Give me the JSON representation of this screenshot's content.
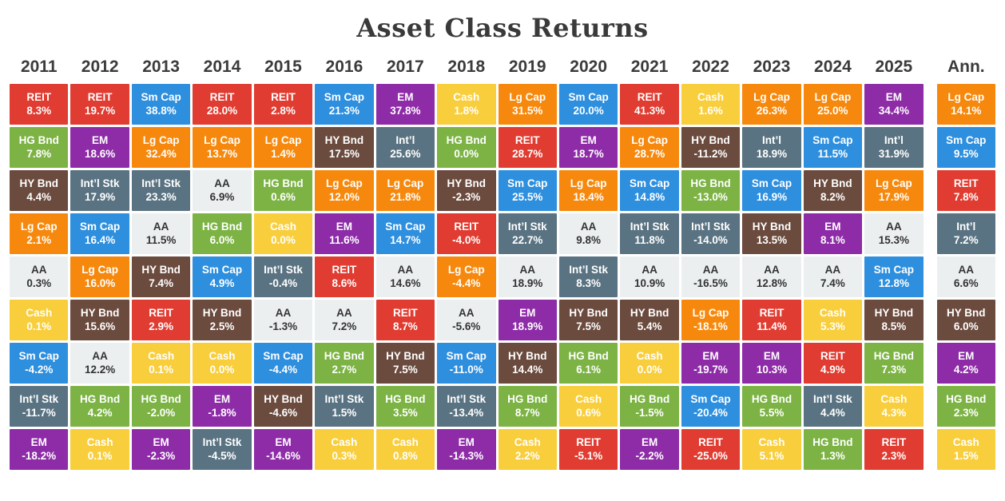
{
  "chart_data": {
    "type": "table",
    "title": "Asset Class Returns",
    "columns_header": [
      "2011",
      "2012",
      "2013",
      "2014",
      "2015",
      "2016",
      "2017",
      "2018",
      "2019",
      "2020",
      "2021",
      "2022",
      "2023",
      "2024",
      "2025",
      "Ann."
    ],
    "legend": {
      "Lg Cap": "#F6890D",
      "Sm Cap": "#2E8FDE",
      "Int’l Stk": "#5A7382",
      "Int’l": "#5A7382",
      "EM": "#8E2CA8",
      "REIT": "#E03C31",
      "HG Bnd": "#7CB344",
      "HY Bnd": "#6B4B3E",
      "AA": "#ECEFF0",
      "Cash": "#F8CE3C"
    },
    "dark_text_labels": [
      "AA"
    ],
    "columns": [
      {
        "year": "2011",
        "cells": [
          {
            "label": "REIT",
            "value": "8.3%"
          },
          {
            "label": "HG Bnd",
            "value": "7.8%"
          },
          {
            "label": "HY Bnd",
            "value": "4.4%"
          },
          {
            "label": "Lg Cap",
            "value": "2.1%"
          },
          {
            "label": "AA",
            "value": "0.3%"
          },
          {
            "label": "Cash",
            "value": "0.1%"
          },
          {
            "label": "Sm Cap",
            "value": "-4.2%"
          },
          {
            "label": "Int’l Stk",
            "value": "-11.7%"
          },
          {
            "label": "EM",
            "value": "-18.2%"
          }
        ]
      },
      {
        "year": "2012",
        "cells": [
          {
            "label": "REIT",
            "value": "19.7%"
          },
          {
            "label": "EM",
            "value": "18.6%"
          },
          {
            "label": "Int’l Stk",
            "value": "17.9%"
          },
          {
            "label": "Sm Cap",
            "value": "16.4%"
          },
          {
            "label": "Lg Cap",
            "value": "16.0%"
          },
          {
            "label": "HY Bnd",
            "value": "15.6%"
          },
          {
            "label": "AA",
            "value": "12.2%"
          },
          {
            "label": "HG Bnd",
            "value": "4.2%"
          },
          {
            "label": "Cash",
            "value": "0.1%"
          }
        ]
      },
      {
        "year": "2013",
        "cells": [
          {
            "label": "Sm Cap",
            "value": "38.8%"
          },
          {
            "label": "Lg Cap",
            "value": "32.4%"
          },
          {
            "label": "Int’l Stk",
            "value": "23.3%"
          },
          {
            "label": "AA",
            "value": "11.5%"
          },
          {
            "label": "HY Bnd",
            "value": "7.4%"
          },
          {
            "label": "REIT",
            "value": "2.9%"
          },
          {
            "label": "Cash",
            "value": "0.1%"
          },
          {
            "label": "HG Bnd",
            "value": "-2.0%"
          },
          {
            "label": "EM",
            "value": "-2.3%"
          }
        ]
      },
      {
        "year": "2014",
        "cells": [
          {
            "label": "REIT",
            "value": "28.0%"
          },
          {
            "label": "Lg Cap",
            "value": "13.7%"
          },
          {
            "label": "AA",
            "value": "6.9%"
          },
          {
            "label": "HG Bnd",
            "value": "6.0%"
          },
          {
            "label": "Sm Cap",
            "value": "4.9%"
          },
          {
            "label": "HY Bnd",
            "value": "2.5%"
          },
          {
            "label": "Cash",
            "value": "0.0%"
          },
          {
            "label": "EM",
            "value": "-1.8%"
          },
          {
            "label": "Int’l Stk",
            "value": "-4.5%"
          }
        ]
      },
      {
        "year": "2015",
        "cells": [
          {
            "label": "REIT",
            "value": "2.8%"
          },
          {
            "label": "Lg Cap",
            "value": "1.4%"
          },
          {
            "label": "HG Bnd",
            "value": "0.6%"
          },
          {
            "label": "Cash",
            "value": "0.0%"
          },
          {
            "label": "Int’l Stk",
            "value": "-0.4%"
          },
          {
            "label": "AA",
            "value": "-1.3%"
          },
          {
            "label": "Sm Cap",
            "value": "-4.4%"
          },
          {
            "label": "HY Bnd",
            "value": "-4.6%"
          },
          {
            "label": "EM",
            "value": "-14.6%"
          }
        ]
      },
      {
        "year": "2016",
        "cells": [
          {
            "label": "Sm Cap",
            "value": "21.3%"
          },
          {
            "label": "HY Bnd",
            "value": "17.5%"
          },
          {
            "label": "Lg Cap",
            "value": "12.0%"
          },
          {
            "label": "EM",
            "value": "11.6%"
          },
          {
            "label": "REIT",
            "value": "8.6%"
          },
          {
            "label": "AA",
            "value": "7.2%"
          },
          {
            "label": "HG Bnd",
            "value": "2.7%"
          },
          {
            "label": "Int’l Stk",
            "value": "1.5%"
          },
          {
            "label": "Cash",
            "value": "0.3%"
          }
        ]
      },
      {
        "year": "2017",
        "cells": [
          {
            "label": "EM",
            "value": "37.8%"
          },
          {
            "label": "Int’l",
            "value": "25.6%"
          },
          {
            "label": "Lg Cap",
            "value": "21.8%"
          },
          {
            "label": "Sm Cap",
            "value": "14.7%"
          },
          {
            "label": "AA",
            "value": "14.6%"
          },
          {
            "label": "REIT",
            "value": "8.7%"
          },
          {
            "label": "HY Bnd",
            "value": "7.5%"
          },
          {
            "label": "HG Bnd",
            "value": "3.5%"
          },
          {
            "label": "Cash",
            "value": "0.8%"
          }
        ]
      },
      {
        "year": "2018",
        "cells": [
          {
            "label": "Cash",
            "value": "1.8%"
          },
          {
            "label": "HG Bnd",
            "value": "0.0%"
          },
          {
            "label": "HY Bnd",
            "value": "-2.3%"
          },
          {
            "label": "REIT",
            "value": "-4.0%"
          },
          {
            "label": "Lg Cap",
            "value": "-4.4%"
          },
          {
            "label": "AA",
            "value": "-5.6%"
          },
          {
            "label": "Sm Cap",
            "value": "-11.0%"
          },
          {
            "label": "Int’l Stk",
            "value": "-13.4%"
          },
          {
            "label": "EM",
            "value": "-14.3%"
          }
        ]
      },
      {
        "year": "2019",
        "cells": [
          {
            "label": "Lg Cap",
            "value": "31.5%"
          },
          {
            "label": "REIT",
            "value": "28.7%"
          },
          {
            "label": "Sm Cap",
            "value": "25.5%"
          },
          {
            "label": "Int’l Stk",
            "value": "22.7%"
          },
          {
            "label": "AA",
            "value": "18.9%"
          },
          {
            "label": "EM",
            "value": "18.9%"
          },
          {
            "label": "HY Bnd",
            "value": "14.4%"
          },
          {
            "label": "HG Bnd",
            "value": "8.7%"
          },
          {
            "label": "Cash",
            "value": "2.2%"
          }
        ]
      },
      {
        "year": "2020",
        "cells": [
          {
            "label": "Sm Cap",
            "value": "20.0%"
          },
          {
            "label": "EM",
            "value": "18.7%"
          },
          {
            "label": "Lg Cap",
            "value": "18.4%"
          },
          {
            "label": "AA",
            "value": "9.8%"
          },
          {
            "label": "Int’l Stk",
            "value": "8.3%"
          },
          {
            "label": "HY Bnd",
            "value": "7.5%"
          },
          {
            "label": "HG Bnd",
            "value": "6.1%"
          },
          {
            "label": "Cash",
            "value": "0.6%"
          },
          {
            "label": "REIT",
            "value": "-5.1%"
          }
        ]
      },
      {
        "year": "2021",
        "cells": [
          {
            "label": "REIT",
            "value": "41.3%"
          },
          {
            "label": "Lg Cap",
            "value": "28.7%"
          },
          {
            "label": "Sm Cap",
            "value": "14.8%"
          },
          {
            "label": "Int’l Stk",
            "value": "11.8%"
          },
          {
            "label": "AA",
            "value": "10.9%"
          },
          {
            "label": "HY Bnd",
            "value": "5.4%"
          },
          {
            "label": "Cash",
            "value": "0.0%"
          },
          {
            "label": "HG Bnd",
            "value": "-1.5%"
          },
          {
            "label": "EM",
            "value": "-2.2%"
          }
        ]
      },
      {
        "year": "2022",
        "cells": [
          {
            "label": "Cash",
            "value": "1.6%"
          },
          {
            "label": "HY Bnd",
            "value": "-11.2%"
          },
          {
            "label": "HG Bnd",
            "value": "-13.0%"
          },
          {
            "label": "Int’l Stk",
            "value": "-14.0%"
          },
          {
            "label": "AA",
            "value": "-16.5%"
          },
          {
            "label": "Lg Cap",
            "value": "-18.1%"
          },
          {
            "label": "EM",
            "value": "-19.7%"
          },
          {
            "label": "Sm Cap",
            "value": "-20.4%"
          },
          {
            "label": "REIT",
            "value": "-25.0%"
          }
        ]
      },
      {
        "year": "2023",
        "cells": [
          {
            "label": "Lg Cap",
            "value": "26.3%"
          },
          {
            "label": "Int’l",
            "value": "18.9%"
          },
          {
            "label": "Sm Cap",
            "value": "16.9%"
          },
          {
            "label": "HY Bnd",
            "value": "13.5%"
          },
          {
            "label": "AA",
            "value": "12.8%"
          },
          {
            "label": "REIT",
            "value": "11.4%"
          },
          {
            "label": "EM",
            "value": "10.3%"
          },
          {
            "label": "HG Bnd",
            "value": "5.5%"
          },
          {
            "label": "Cash",
            "value": "5.1%"
          }
        ]
      },
      {
        "year": "2024",
        "cells": [
          {
            "label": "Lg Cap",
            "value": "25.0%"
          },
          {
            "label": "Sm Cap",
            "value": "11.5%"
          },
          {
            "label": "HY Bnd",
            "value": "8.2%"
          },
          {
            "label": "EM",
            "value": "8.1%"
          },
          {
            "label": "AA",
            "value": "7.4%"
          },
          {
            "label": "Cash",
            "value": "5.3%"
          },
          {
            "label": "REIT",
            "value": "4.9%"
          },
          {
            "label": "Int’l Stk",
            "value": "4.4%"
          },
          {
            "label": "HG Bnd",
            "value": "1.3%"
          }
        ]
      },
      {
        "year": "2025",
        "cells": [
          {
            "label": "EM",
            "value": "34.4%"
          },
          {
            "label": "Int’l",
            "value": "31.9%"
          },
          {
            "label": "Lg Cap",
            "value": "17.9%"
          },
          {
            "label": "AA",
            "value": "15.3%"
          },
          {
            "label": "Sm Cap",
            "value": "12.8%"
          },
          {
            "label": "HY Bnd",
            "value": "8.5%"
          },
          {
            "label": "HG Bnd",
            "value": "7.3%"
          },
          {
            "label": "Cash",
            "value": "4.3%"
          },
          {
            "label": "REIT",
            "value": "2.3%"
          }
        ]
      },
      {
        "year": "Ann.",
        "cells": [
          {
            "label": "Lg Cap",
            "value": "14.1%"
          },
          {
            "label": "Sm Cap",
            "value": "9.5%"
          },
          {
            "label": "REIT",
            "value": "7.8%"
          },
          {
            "label": "Int’l",
            "value": "7.2%"
          },
          {
            "label": "AA",
            "value": "6.6%"
          },
          {
            "label": "HY Bnd",
            "value": "6.0%"
          },
          {
            "label": "EM",
            "value": "4.2%"
          },
          {
            "label": "HG Bnd",
            "value": "2.3%"
          },
          {
            "label": "Cash",
            "value": "1.5%"
          }
        ]
      }
    ]
  }
}
